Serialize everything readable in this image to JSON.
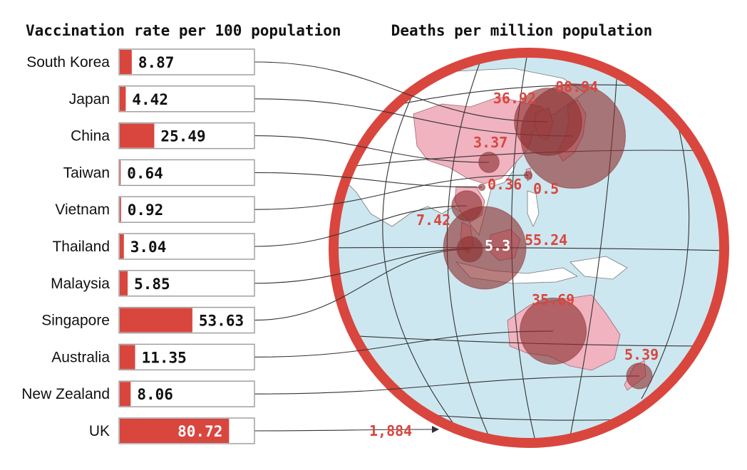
{
  "colors": {
    "accent": "#d9463e",
    "ocean": "#cde7f0",
    "land": "#ffffff",
    "highlight_land": "#f0b3bf",
    "bubble": "#8c2f2f",
    "grid": "#333333",
    "frame": "#d9463e"
  },
  "chart_data": [
    {
      "type": "bar",
      "orientation": "horizontal",
      "title": "Vaccination rate per 100 population",
      "categories": [
        "South Korea",
        "Japan",
        "China",
        "Taiwan",
        "Vietnam",
        "Thailand",
        "Malaysia",
        "Singapore",
        "Australia",
        "New Zealand",
        "UK"
      ],
      "values": [
        8.87,
        4.42,
        25.49,
        0.64,
        0.92,
        3.04,
        5.85,
        53.63,
        11.35,
        8.06,
        80.72
      ],
      "value_labels": [
        "8.87",
        "4.42",
        "25.49",
        "0.64",
        "0.92",
        "3.04",
        "5.85",
        "53.63",
        "11.35",
        "8.06",
        "80.72"
      ],
      "xlim": [
        0,
        100
      ]
    },
    {
      "type": "bubble-map",
      "title": "Deaths per million population",
      "points": [
        {
          "country": "South Korea",
          "value": 36.92,
          "label": "36.92"
        },
        {
          "country": "Japan",
          "value": 88.94,
          "label": "88.94"
        },
        {
          "country": "China",
          "value": 3.37,
          "label": "3.37"
        },
        {
          "country": "Taiwan",
          "value": 0.36,
          "label": "0.36"
        },
        {
          "country": "Vietnam",
          "value": 0.5,
          "label": "0.5"
        },
        {
          "country": "Thailand",
          "value": 7.42,
          "label": "7.42"
        },
        {
          "country": "Malaysia",
          "value": 55.24,
          "label": "55.24"
        },
        {
          "country": "Singapore",
          "value": 5.3,
          "label": "5.3"
        },
        {
          "country": "Australia",
          "value": 35.69,
          "label": "35.69"
        },
        {
          "country": "New Zealand",
          "value": 5.39,
          "label": "5.39"
        },
        {
          "country": "UK",
          "value": 1884,
          "label": "1,884"
        }
      ]
    }
  ]
}
